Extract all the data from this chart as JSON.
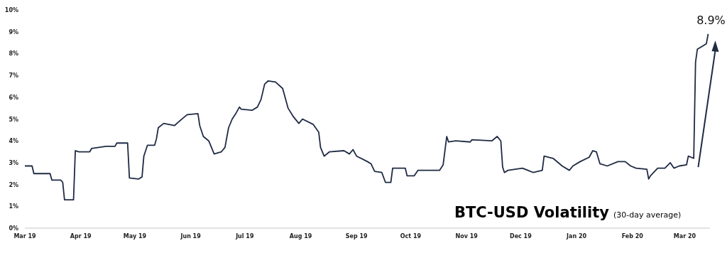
{
  "chart_data": {
    "type": "line",
    "title": "BTC-USD Volatility",
    "subtitle": "(30-day average)",
    "x": [
      "2019-03-01",
      "2019-03-05",
      "2019-03-06",
      "2019-03-15",
      "2019-03-16",
      "2019-03-21",
      "2019-03-22",
      "2019-03-23",
      "2019-03-28",
      "2019-03-29",
      "2019-03-31",
      "2019-04-06",
      "2019-04-07",
      "2019-04-15",
      "2019-04-20",
      "2019-04-21",
      "2019-04-27",
      "2019-04-28",
      "2019-05-03",
      "2019-05-05",
      "2019-05-06",
      "2019-05-08",
      "2019-05-12",
      "2019-05-13",
      "2019-05-14",
      "2019-05-17",
      "2019-05-23",
      "2019-05-25",
      "2019-05-30",
      "2019-06-05",
      "2019-06-06",
      "2019-06-08",
      "2019-06-11",
      "2019-06-14",
      "2019-06-18",
      "2019-06-20",
      "2019-06-22",
      "2019-06-24",
      "2019-06-26",
      "2019-06-28",
      "2019-06-29",
      "2019-07-05",
      "2019-07-08",
      "2019-07-10",
      "2019-07-12",
      "2019-07-14",
      "2019-07-18",
      "2019-07-22",
      "2019-07-25",
      "2019-07-28",
      "2019-07-31",
      "2019-08-02",
      "2019-08-08",
      "2019-08-11",
      "2019-08-12",
      "2019-08-14",
      "2019-08-17",
      "2019-08-25",
      "2019-08-28",
      "2019-08-30",
      "2019-09-01",
      "2019-09-07",
      "2019-09-09",
      "2019-09-11",
      "2019-09-15",
      "2019-09-17",
      "2019-09-20",
      "2019-09-21",
      "2019-09-25",
      "2019-09-28",
      "2019-09-29",
      "2019-10-03",
      "2019-10-05",
      "2019-10-17",
      "2019-10-19",
      "2019-10-21",
      "2019-10-22",
      "2019-10-26",
      "2019-11-03",
      "2019-11-04",
      "2019-11-15",
      "2019-11-18",
      "2019-11-20",
      "2019-11-21",
      "2019-11-22",
      "2019-11-24",
      "2019-12-02",
      "2019-12-05",
      "2019-12-08",
      "2019-12-13",
      "2019-12-14",
      "2019-12-19",
      "2019-12-24",
      "2019-12-28",
      "2019-12-30",
      "2020-01-03",
      "2020-01-08",
      "2020-01-10",
      "2020-01-12",
      "2020-01-14",
      "2020-01-18",
      "2020-01-24",
      "2020-01-28",
      "2020-01-31",
      "2020-02-03",
      "2020-02-09",
      "2020-02-10",
      "2020-02-11",
      "2020-02-15",
      "2020-02-19",
      "2020-02-22",
      "2020-02-24",
      "2020-02-27",
      "2020-03-02",
      "2020-03-03",
      "2020-03-06",
      "2020-03-07",
      "2020-03-08",
      "2020-03-11",
      "2020-03-13",
      "2020-03-14"
    ],
    "series": [
      {
        "color": "#1f2a44",
        "values": [
          2.85,
          2.85,
          2.5,
          2.5,
          2.2,
          2.2,
          2.1,
          1.3,
          1.3,
          3.55,
          3.5,
          3.5,
          3.65,
          3.75,
          3.75,
          3.9,
          3.9,
          2.3,
          2.25,
          2.35,
          3.3,
          3.8,
          3.8,
          4.1,
          4.6,
          4.8,
          4.7,
          4.85,
          5.2,
          5.25,
          4.7,
          4.2,
          4.0,
          3.4,
          3.5,
          3.7,
          4.6,
          5.0,
          5.25,
          5.55,
          5.45,
          5.4,
          5.55,
          5.9,
          6.6,
          6.75,
          6.7,
          6.4,
          5.5,
          5.1,
          4.8,
          5.0,
          4.75,
          4.4,
          3.7,
          3.3,
          3.5,
          3.55,
          3.4,
          3.6,
          3.3,
          3.05,
          2.95,
          2.6,
          2.55,
          2.1,
          2.1,
          2.75,
          2.75,
          2.75,
          2.4,
          2.4,
          2.65,
          2.65,
          2.9,
          4.2,
          3.95,
          4.0,
          3.95,
          4.05,
          4.0,
          4.2,
          4.0,
          2.8,
          2.55,
          2.65,
          2.75,
          2.65,
          2.55,
          2.65,
          3.3,
          3.2,
          2.85,
          2.65,
          2.85,
          3.05,
          3.25,
          3.55,
          3.5,
          2.95,
          2.85,
          3.05,
          3.05,
          2.85,
          2.75,
          2.7,
          2.25,
          2.4,
          2.75,
          2.75,
          3.0,
          2.75,
          2.85,
          2.9,
          3.3,
          3.2,
          7.6,
          8.2,
          8.35,
          8.45,
          8.9
        ]
      }
    ],
    "xlim": [
      "2019-03-01",
      "2020-03-15"
    ],
    "xticks": [
      {
        "value": "2019-03-01",
        "label": "Mar 19"
      },
      {
        "value": "2019-04-01",
        "label": "Apr 19"
      },
      {
        "value": "2019-05-01",
        "label": "May 19"
      },
      {
        "value": "2019-06-01",
        "label": "Jun 19"
      },
      {
        "value": "2019-07-01",
        "label": "Jul 19"
      },
      {
        "value": "2019-08-01",
        "label": "Aug 19"
      },
      {
        "value": "2019-09-01",
        "label": "Sep 19"
      },
      {
        "value": "2019-10-01",
        "label": "Oct 19"
      },
      {
        "value": "2019-11-01",
        "label": "Nov 19"
      },
      {
        "value": "2019-12-01",
        "label": "Dec 19"
      },
      {
        "value": "2020-01-01",
        "label": "Jan 20"
      },
      {
        "value": "2020-02-01",
        "label": "Feb 20"
      },
      {
        "value": "2020-03-01",
        "label": "Mar 20"
      }
    ],
    "ylim": [
      0,
      10
    ],
    "yticks": [
      {
        "value": 0,
        "label": "0%"
      },
      {
        "value": 1,
        "label": "1%"
      },
      {
        "value": 2,
        "label": "2%"
      },
      {
        "value": 3,
        "label": "3%"
      },
      {
        "value": 4,
        "label": "4%"
      },
      {
        "value": 5,
        "label": "5%"
      },
      {
        "value": 6,
        "label": "6%"
      },
      {
        "value": 7,
        "label": "7%"
      },
      {
        "value": 8,
        "label": "8%"
      },
      {
        "value": 9,
        "label": "9%"
      },
      {
        "value": 10,
        "label": "10%"
      }
    ],
    "annotations": [
      {
        "text": "8.9%",
        "x": "2020-03-14",
        "y": 8.9
      }
    ],
    "grid": false,
    "marker": "none",
    "line_style": "solid"
  }
}
